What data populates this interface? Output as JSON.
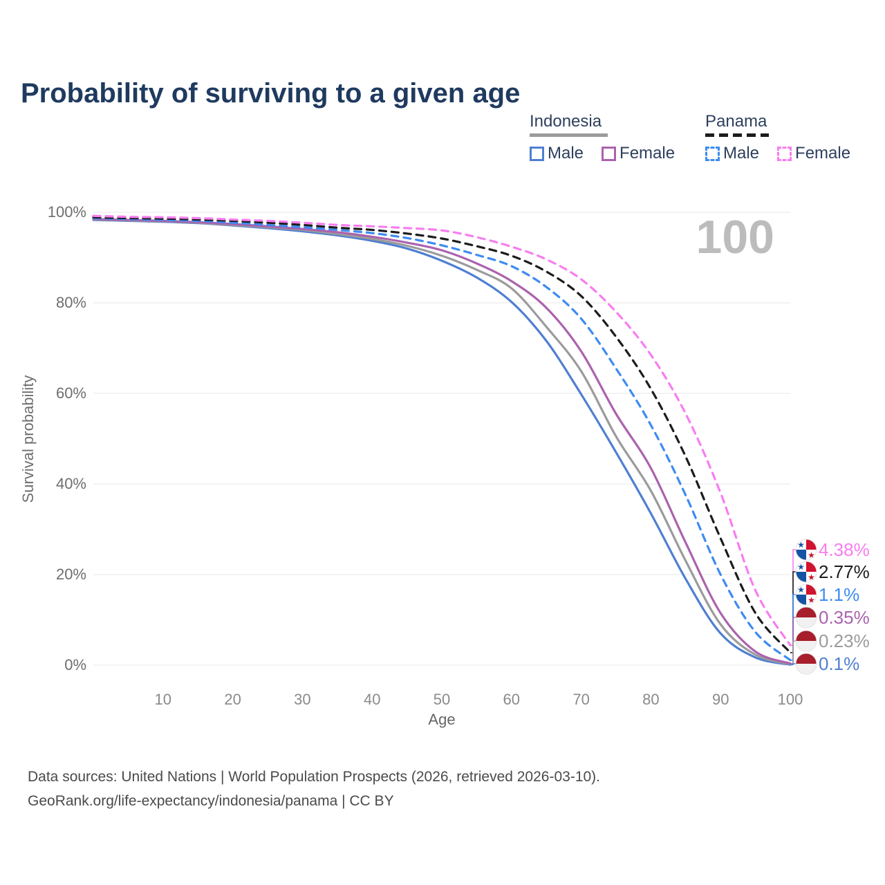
{
  "title": "Probability of surviving to a given age",
  "watermark": "100",
  "legend": {
    "groups": [
      {
        "label": "Indonesia",
        "style": "solid",
        "underline_color": "#9b9b9b",
        "items": [
          {
            "label": "Male",
            "color": "#4f7fd1"
          },
          {
            "label": "Female",
            "color": "#ab62ae"
          }
        ]
      },
      {
        "label": "Panama",
        "style": "dashed",
        "underline_color": "#1c1c1c",
        "items": [
          {
            "label": "Male",
            "color": "#3d8bf2"
          },
          {
            "label": "Female",
            "color": "#f87df0"
          }
        ]
      }
    ]
  },
  "axes": {
    "y_label": "Survival probability",
    "x_label": "Age",
    "y_ticks": [
      {
        "label": "0%",
        "value": 0
      },
      {
        "label": "20%",
        "value": 20
      },
      {
        "label": "40%",
        "value": 40
      },
      {
        "label": "60%",
        "value": 60
      },
      {
        "label": "80%",
        "value": 80
      },
      {
        "label": "100%",
        "value": 100
      }
    ],
    "x_ticks": [
      10,
      20,
      30,
      40,
      50,
      60,
      70,
      80,
      90,
      100
    ]
  },
  "end_labels": [
    {
      "text": "4.38%",
      "color": "#f87df0",
      "flag": "panama"
    },
    {
      "text": "2.77%",
      "color": "#1c1c1c",
      "flag": "panama"
    },
    {
      "text": "1.1%",
      "color": "#3d8bf2",
      "flag": "panama"
    },
    {
      "text": "0.35%",
      "color": "#ab62ae",
      "flag": "indonesia"
    },
    {
      "text": "0.23%",
      "color": "#9b9b9b",
      "flag": "indonesia"
    },
    {
      "text": "0.1%",
      "color": "#4f7fd1",
      "flag": "indonesia"
    }
  ],
  "footer": {
    "line1": "Data sources: United Nations | World Population Prospects (2026, retrieved 2026-03-10).",
    "line2": "GeoRank.org/life-expectancy/indonesia/panama | CC BY"
  },
  "chart_data": {
    "type": "line",
    "title": "Probability of surviving to a given age",
    "xlabel": "Age",
    "ylabel": "Survival probability",
    "xlim": [
      0,
      100
    ],
    "ylim": [
      0,
      100
    ],
    "grid": true,
    "legend_position": "top-right",
    "x": [
      0,
      5,
      10,
      15,
      20,
      25,
      30,
      35,
      40,
      45,
      50,
      55,
      60,
      65,
      70,
      75,
      80,
      85,
      90,
      95,
      100
    ],
    "series": [
      {
        "name": "Panama Female",
        "country": "Panama",
        "sex": "Female",
        "color": "#f87df0",
        "dash": true,
        "end_label": "4.38%",
        "values": [
          99.2,
          99.0,
          98.9,
          98.7,
          98.4,
          98.1,
          97.7,
          97.2,
          96.9,
          96.5,
          96.0,
          94.5,
          92.4,
          89.6,
          85.2,
          78.0,
          68.5,
          55.5,
          38.0,
          16.5,
          4.38
        ]
      },
      {
        "name": "Panama Both sexes",
        "country": "Panama",
        "sex": "Both",
        "color": "#1c1c1c",
        "dash": true,
        "end_label": "2.77%",
        "values": [
          98.9,
          98.7,
          98.6,
          98.4,
          98.1,
          97.7,
          97.2,
          96.6,
          96.1,
          95.3,
          94.2,
          92.5,
          90.4,
          86.9,
          81.5,
          72.5,
          61.0,
          46.0,
          28.0,
          11.5,
          2.77
        ]
      },
      {
        "name": "Panama Male",
        "country": "Panama",
        "sex": "Male",
        "color": "#3d8bf2",
        "dash": true,
        "end_label": "1.1%",
        "values": [
          98.7,
          98.5,
          98.3,
          98.1,
          97.7,
          97.2,
          96.7,
          96.1,
          95.4,
          94.3,
          92.7,
          90.6,
          88.1,
          83.5,
          76.5,
          65.5,
          53.0,
          37.5,
          20.0,
          7.3,
          1.1
        ]
      },
      {
        "name": "Indonesia Female",
        "country": "Indonesia",
        "sex": "Female",
        "color": "#ab62ae",
        "dash": false,
        "end_label": "0.35%",
        "values": [
          98.5,
          98.3,
          98.1,
          97.8,
          97.4,
          96.9,
          96.3,
          95.6,
          94.6,
          93.3,
          91.6,
          88.7,
          84.8,
          78.9,
          69.3,
          55.5,
          43.5,
          27.0,
          11.5,
          3.0,
          0.35
        ]
      },
      {
        "name": "Indonesia Both sexes",
        "country": "Indonesia",
        "sex": "Both",
        "color": "#9b9b9b",
        "dash": false,
        "end_label": "0.23%",
        "values": [
          98.4,
          98.2,
          98.0,
          97.7,
          97.2,
          96.7,
          96.1,
          95.2,
          94.1,
          92.6,
          90.4,
          87.3,
          83.2,
          74.7,
          64.9,
          50.5,
          38.5,
          23.0,
          9.0,
          2.3,
          0.23
        ]
      },
      {
        "name": "Indonesia Male",
        "country": "Indonesia",
        "sex": "Male",
        "color": "#4f7fd1",
        "dash": false,
        "end_label": "0.1%",
        "values": [
          98.3,
          98.1,
          97.9,
          97.6,
          97.1,
          96.5,
          95.8,
          94.9,
          93.7,
          92.0,
          89.3,
          85.6,
          80.2,
          71.6,
          59.8,
          47.0,
          33.5,
          19.0,
          7.0,
          1.7,
          0.1
        ]
      }
    ]
  }
}
